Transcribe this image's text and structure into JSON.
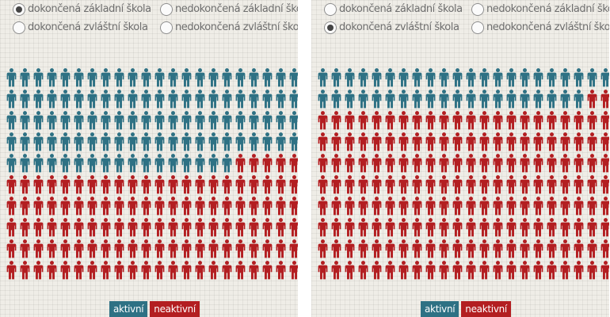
{
  "colors": {
    "active": "#2e7184",
    "inactive": "#b31e21"
  },
  "grid": {
    "columns": 22,
    "rows": 10
  },
  "panels": [
    {
      "options": [
        {
          "label": "dokončená základní škola",
          "selected": true
        },
        {
          "label": "nedokončená základní škola",
          "selected": false
        },
        {
          "label": "dokončená zvláštní škola",
          "selected": false
        },
        {
          "label": "nedokončená zvláštní škola",
          "selected": false
        }
      ],
      "active_count": 105,
      "legend": {
        "active": "aktivní",
        "inactive": "neaktivní"
      }
    },
    {
      "options": [
        {
          "label": "dokončená základní škola",
          "selected": false
        },
        {
          "label": "nedokončená základní škola",
          "selected": false
        },
        {
          "label": "dokončená zvláštní škola",
          "selected": true
        },
        {
          "label": "nedokončená zvláštní škola",
          "selected": false
        }
      ],
      "active_count": 42,
      "legend": {
        "active": "aktivní",
        "inactive": "neaktivní"
      }
    }
  ]
}
